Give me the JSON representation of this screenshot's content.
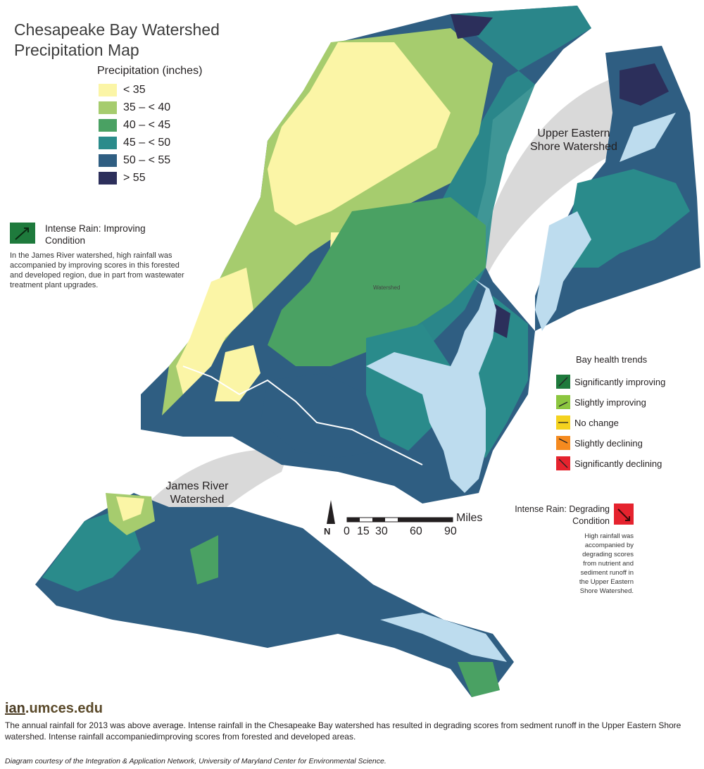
{
  "title_line1": "Chesapeake Bay Watershed",
  "title_line2": "Precipitation Map",
  "legend": {
    "title": "Precipitation (inches)",
    "items": [
      {
        "label": "< 35",
        "color": "#fbf5a6"
      },
      {
        "label": "35 – < 40",
        "color": "#a6cc6e"
      },
      {
        "label": "40 – < 45",
        "color": "#4aa163"
      },
      {
        "label": "45 – < 50",
        "color": "#2a8b8b"
      },
      {
        "label": "50 – < 55",
        "color": "#2f5e82"
      },
      {
        "label": "> 55",
        "color": "#2c2f5b"
      }
    ]
  },
  "improving_callout": {
    "title_line1": "Intense Rain: Improving",
    "title_line2": "Condition",
    "body": "In the James River watershed, high rainfall was accompanied by improving scores in this forested and developed region, due in part from wastewater treatment plant upgrades.",
    "icon": "significantly-improving-icon"
  },
  "degrading_callout": {
    "title_line1": "Intense Rain: Degrading",
    "title_line2": "Condition",
    "body": "High rainfall was accompanied by degrading scores from nutrient and sediment runoff in the Upper Eastern Shore Watershed.",
    "icon": "significantly-declining-icon"
  },
  "upper_eastern_shore_label": "Upper Eastern Shore Watershed",
  "james_river_label": "James River Watershed",
  "watershed_small_label": "Watershed",
  "bay_trends": {
    "title": "Bay health trends",
    "items": [
      {
        "label": "Significantly improving",
        "color": "#1e7a3c",
        "icon": "arrow-up-icon"
      },
      {
        "label": "Slightly improving",
        "color": "#8cc63f",
        "icon": "arrow-slight-up-icon"
      },
      {
        "label": "No change",
        "color": "#f4d21f",
        "icon": "arrow-right-icon"
      },
      {
        "label": "Slightly declining",
        "color": "#f58a1f",
        "icon": "arrow-slight-down-icon"
      },
      {
        "label": "Significantly declining",
        "color": "#e5232e",
        "icon": "arrow-down-icon"
      }
    ]
  },
  "scale": {
    "unit": "Miles",
    "ticks": [
      "0",
      "15",
      "30",
      "60",
      "90"
    ],
    "north": "N"
  },
  "brand": {
    "ian": "ian",
    "rest": ".umces.edu"
  },
  "footer": "The annual rainfall for 2013 was above average. Intense rainfall in the Chesapeake Bay watershed has resulted in degrading scores from sedment runoff in the Upper Eastern Shore watershed.  Intense rainfall accompaniedimproving scores from forested and developed areas.",
  "credit": "Diagram courtesy of the Integration & Application Network, University of Maryland Center for Environmental Science.",
  "colors": {
    "water": "#bddcee",
    "inset_bg": "#d9d9d9"
  }
}
